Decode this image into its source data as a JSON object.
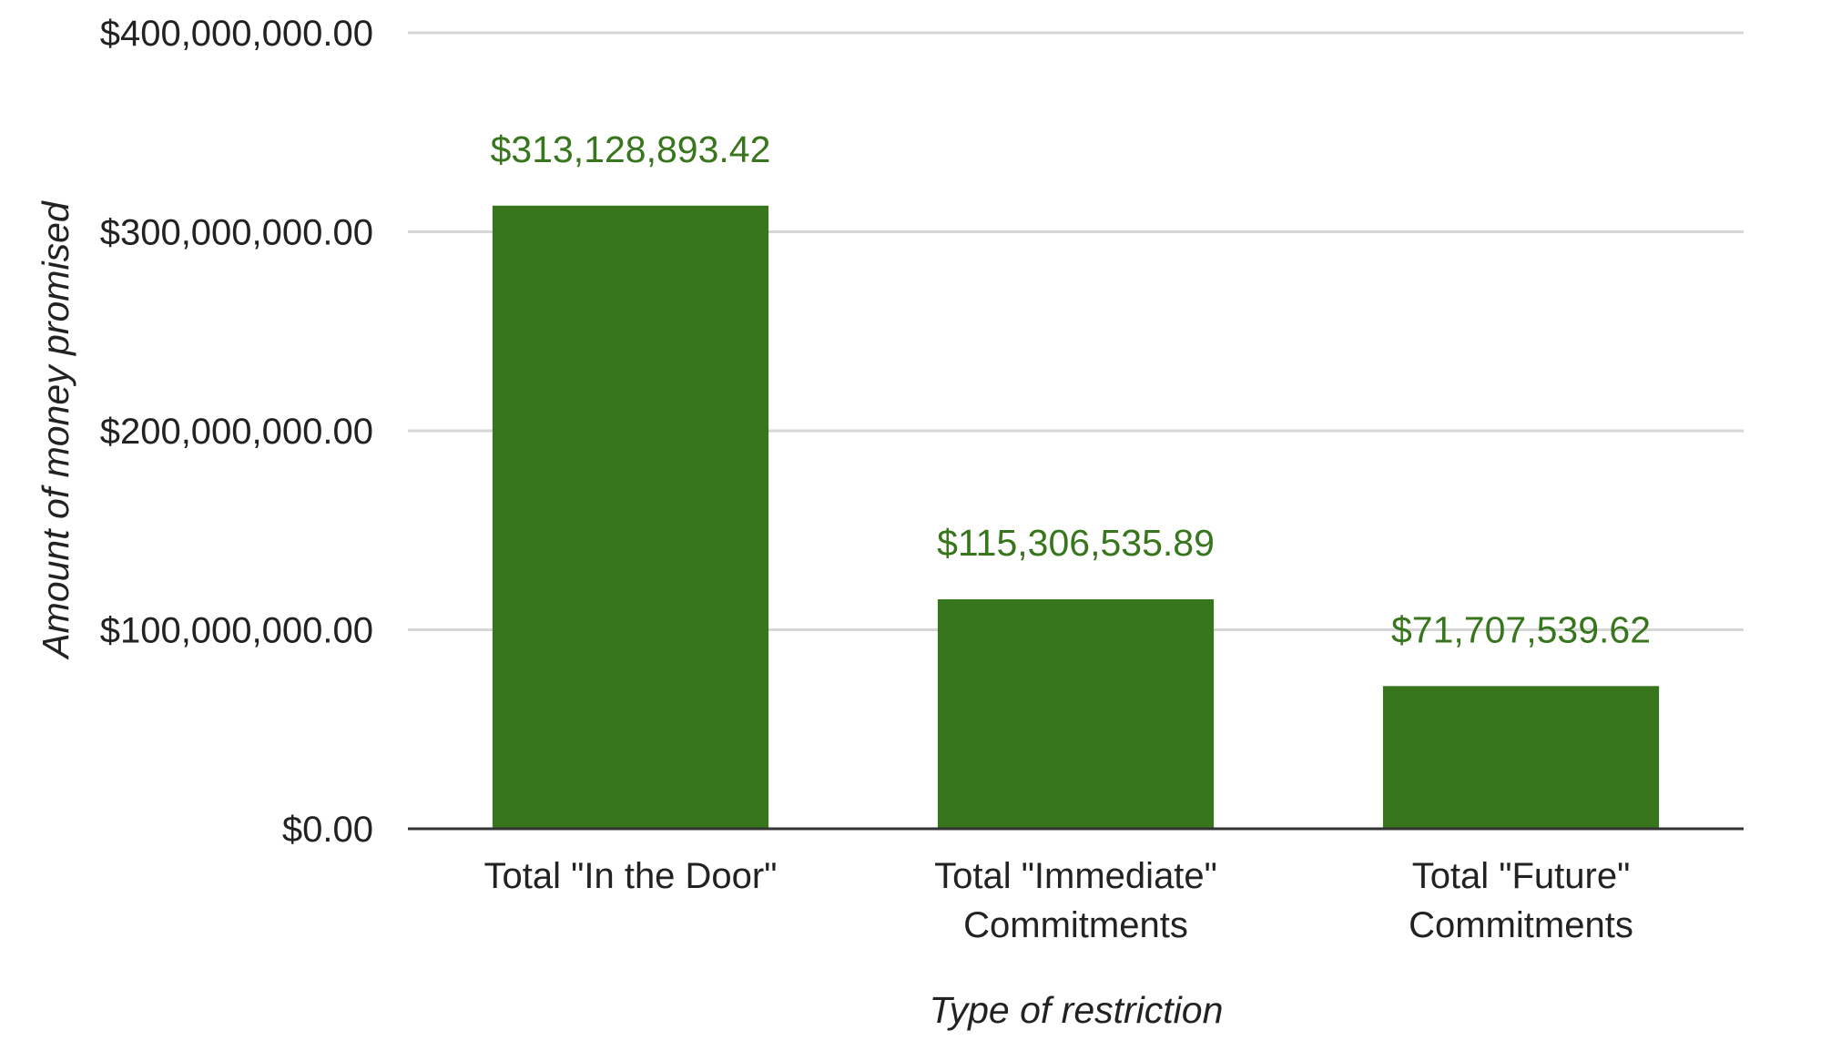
{
  "chart_data": {
    "type": "bar",
    "title": "",
    "xlabel": "Type of restriction",
    "ylabel": "Amount of money promised",
    "categories": [
      [
        "Total \"In the Door\""
      ],
      [
        "Total \"Immediate\"",
        "Commitments"
      ],
      [
        "Total \"Future\"",
        "Commitments"
      ]
    ],
    "values": [
      313128893.42,
      115306535.89,
      71707539.62
    ],
    "data_labels": [
      "$313,128,893.42",
      "$115,306,535.89",
      "$71,707,539.62"
    ],
    "ylim": [
      0,
      400000000
    ],
    "yticks": [
      0,
      100000000,
      200000000,
      300000000,
      400000000
    ],
    "ytick_labels": [
      "$0.00",
      "$100,000,000.00",
      "$200,000,000.00",
      "$300,000,000.00",
      "$400,000,000.00"
    ],
    "grid": true,
    "legend": "none",
    "colors": {
      "bar": "#38761d",
      "label": "#38761d"
    }
  }
}
